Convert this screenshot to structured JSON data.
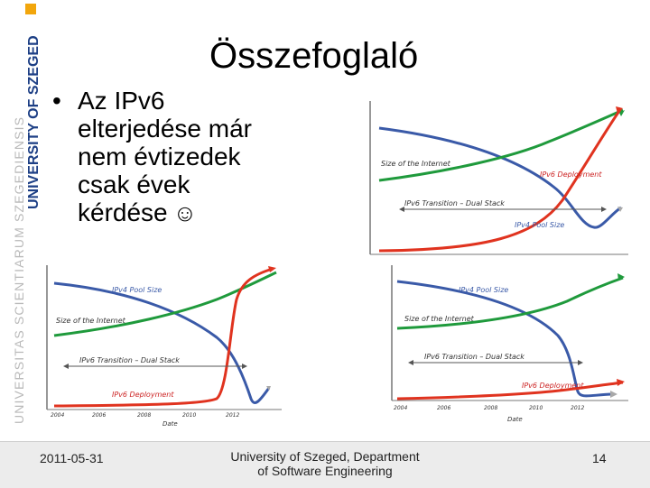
{
  "slide": {
    "title": "Összefoglaló",
    "bullet": "Az IPv6 elterjedése már nem évtizedek csak évek kérdése",
    "smiley_icon": "smiley-icon"
  },
  "brand": {
    "university_name": "UNIVERSITY OF SZEGED",
    "latin_name": "UNIVERSITAS SCIENTIARUM SZEGEDIENSIS",
    "colors": {
      "navy": "#1d3f85",
      "orange": "#f2a60c",
      "gray": "#b9b9b9"
    }
  },
  "charts": {
    "top_right": {
      "labels": {
        "internet": "Size of the Internet",
        "deployment": "IPv6 Deployment",
        "transition": "IPv6 Transition – Dual Stack",
        "pool": "IPv4 Pool Size"
      }
    },
    "bottom_left": {
      "labels": {
        "pool": "IPv4 Pool Size",
        "internet": "Size of the Internet",
        "transition": "IPv6 Transition – Dual Stack",
        "deployment": "IPv6 Deployment",
        "date": "Date"
      },
      "ticks": [
        "2004",
        "2006",
        "2008",
        "2010",
        "2012"
      ]
    },
    "bottom_right": {
      "labels": {
        "pool": "IPv4 Pool Size",
        "internet": "Size of the Internet",
        "transition": "IPv6 Transition – Dual Stack",
        "deployment": "IPv6 Deployment",
        "date": "Date"
      },
      "ticks": [
        "2004",
        "2006",
        "2008",
        "2010",
        "2012"
      ]
    },
    "colors": {
      "green": "#1f9a3c",
      "red": "#e0331f",
      "blue": "#3a5aa8",
      "gray": "#a8a8a8"
    }
  },
  "footer": {
    "date": "2011-05-31",
    "org_line1": "University of Szeged, Department",
    "org_line2": "of Software Engineering",
    "page": "14"
  }
}
